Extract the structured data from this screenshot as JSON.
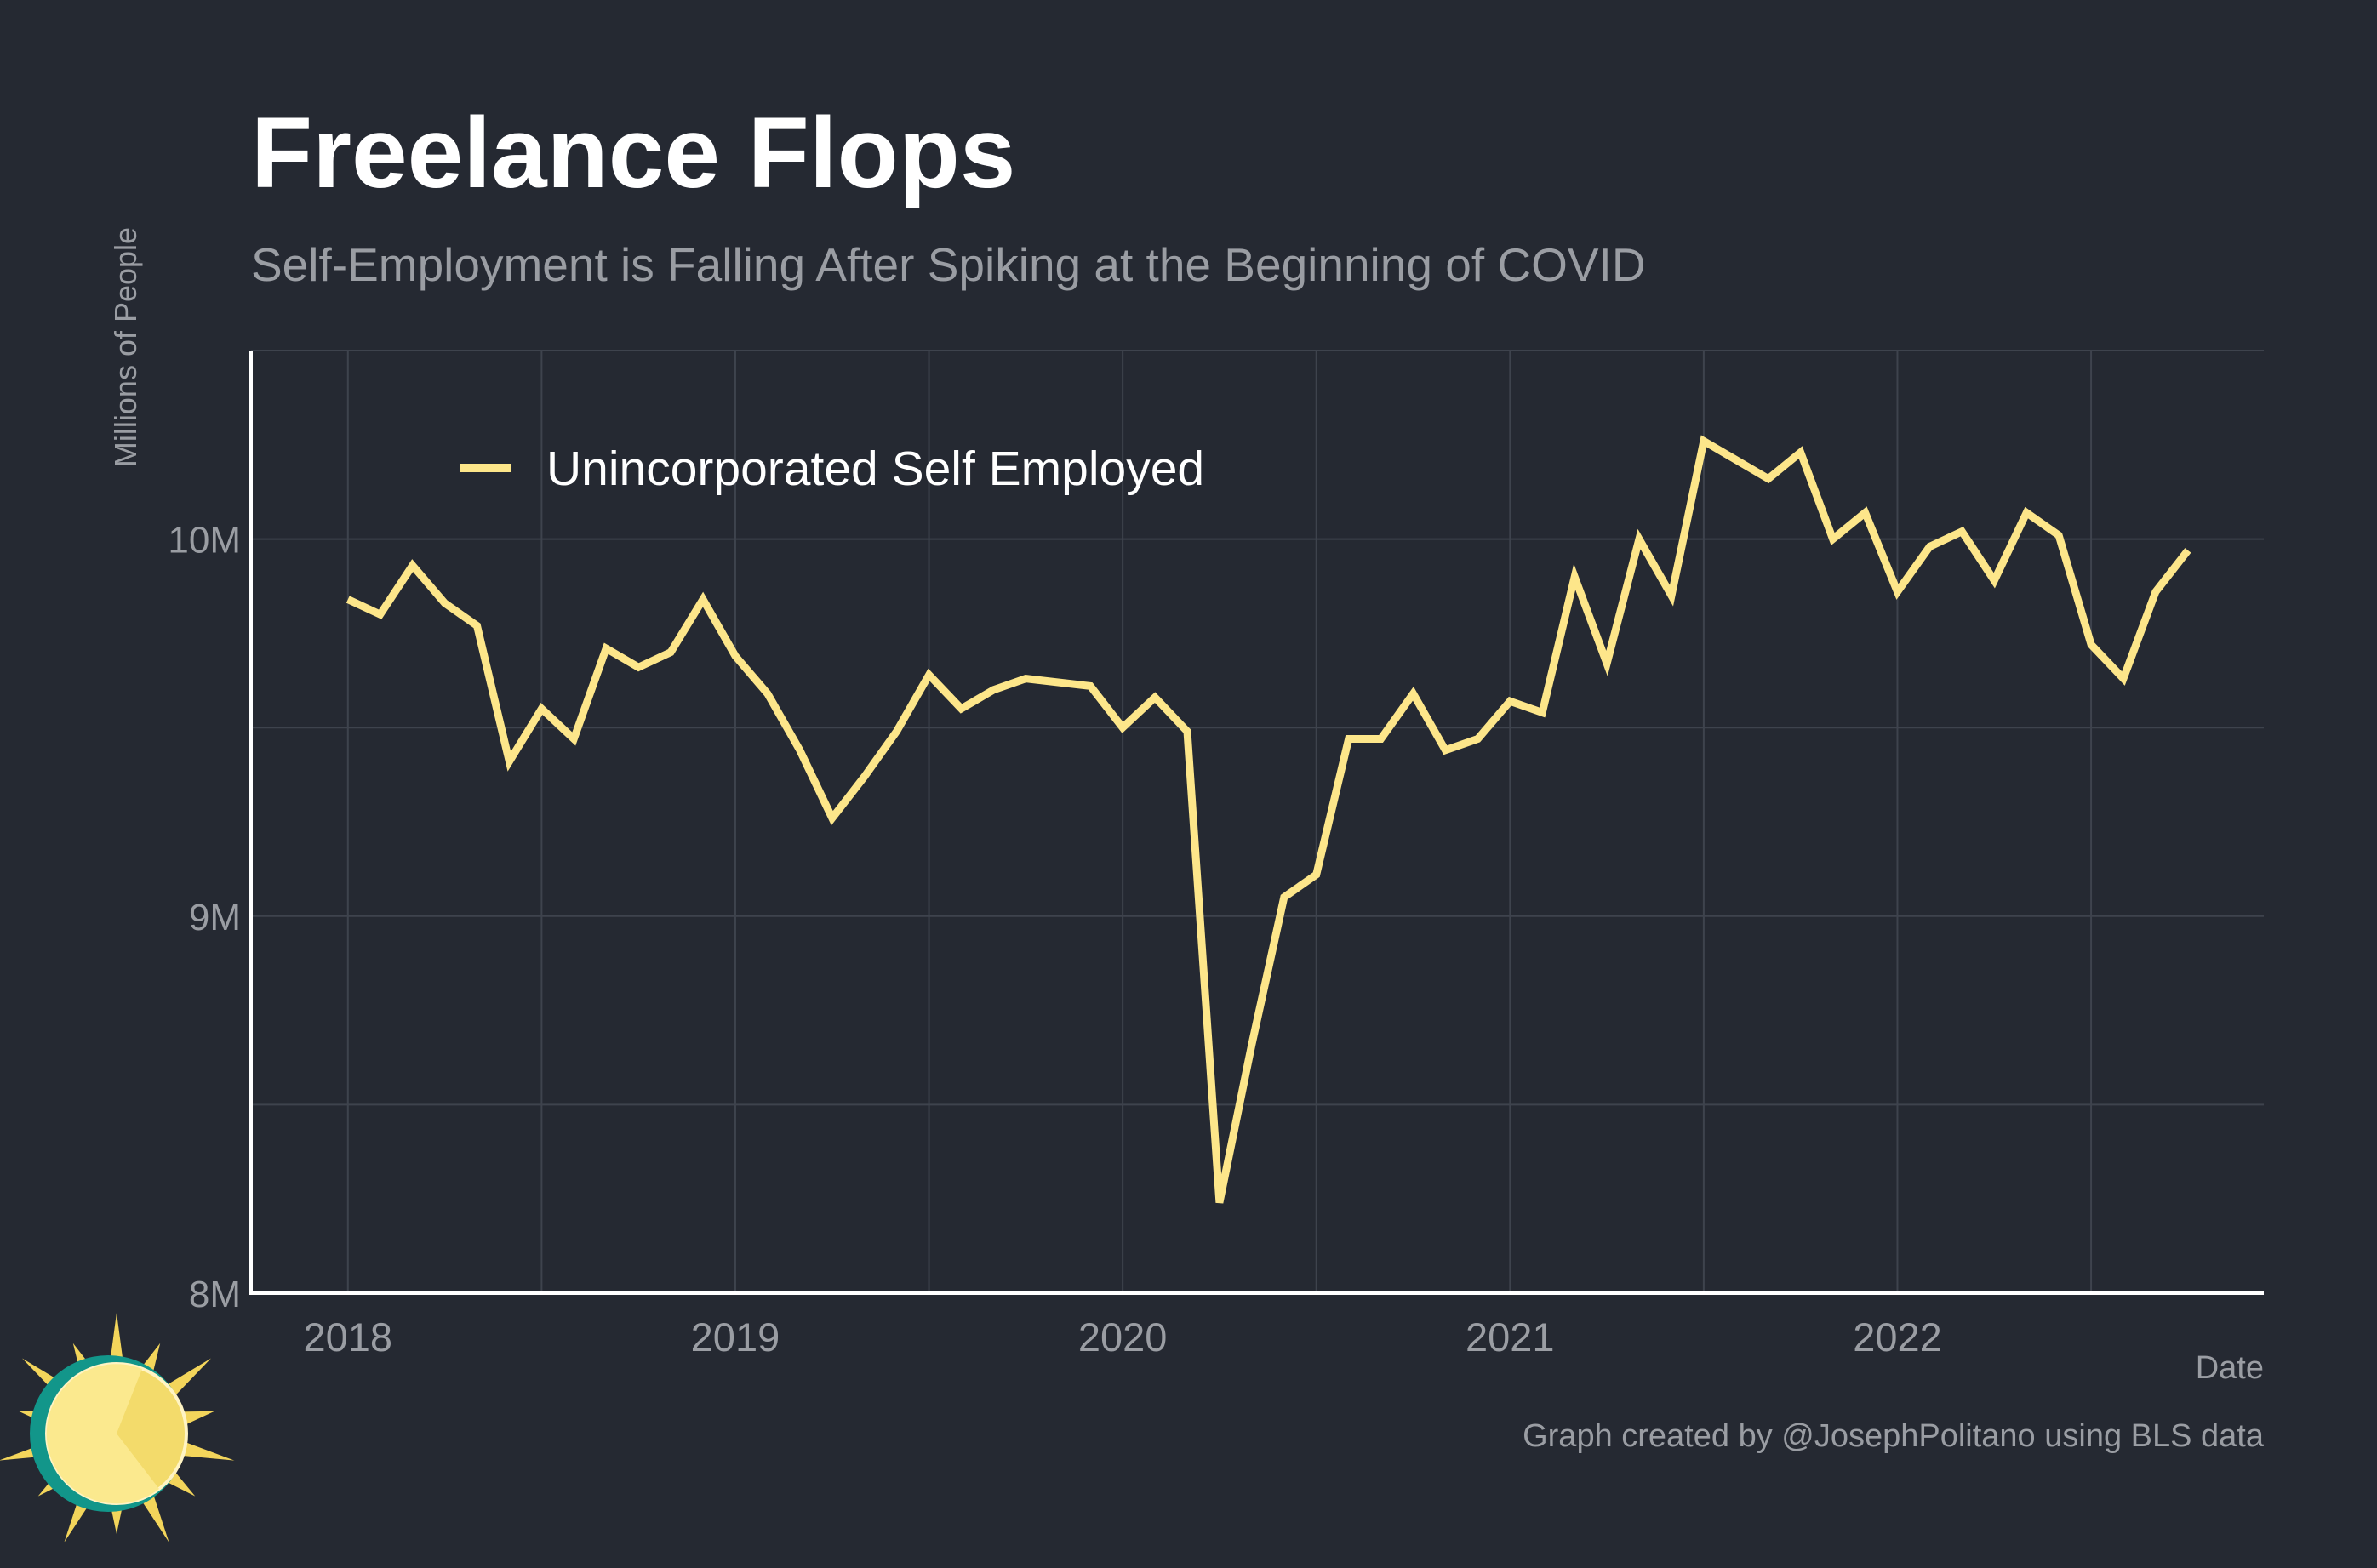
{
  "chart_data": {
    "type": "line",
    "title": "Freelance Flops",
    "subtitle": "Self-Employment is Falling After Spiking at the Beginning of COVID",
    "ylabel": "Millions of People",
    "xlabel": "Date",
    "caption": "Graph created by @JosephPolitano using BLS data",
    "x_ticks": [
      "2018",
      "2019",
      "2020",
      "2021",
      "2022"
    ],
    "y_ticks": [
      "8M",
      "9M",
      "10M"
    ],
    "y_tick_values": [
      8,
      9,
      10
    ],
    "ylim": [
      8,
      10.5
    ],
    "xlim": [
      "2017-10",
      "2022-12"
    ],
    "grid": true,
    "legend": "top-left",
    "colors": {
      "background": "#252932",
      "line": "#FDE68A",
      "grid": "#3E434D",
      "text": "#9A9DA3",
      "title": "#FFFFFF",
      "axis": "#FFFFFF"
    },
    "series": [
      {
        "name": "Unincorporated Self Employed",
        "x": [
          "2018-01",
          "2018-02",
          "2018-03",
          "2018-04",
          "2018-05",
          "2018-06",
          "2018-07",
          "2018-08",
          "2018-09",
          "2018-10",
          "2018-11",
          "2018-12",
          "2019-01",
          "2019-02",
          "2019-03",
          "2019-04",
          "2019-05",
          "2019-06",
          "2019-07",
          "2019-08",
          "2019-09",
          "2019-10",
          "2019-11",
          "2019-12",
          "2020-01",
          "2020-02",
          "2020-03",
          "2020-04",
          "2020-05",
          "2020-06",
          "2020-07",
          "2020-08",
          "2020-09",
          "2020-10",
          "2020-11",
          "2020-12",
          "2021-01",
          "2021-02",
          "2021-03",
          "2021-04",
          "2021-05",
          "2021-06",
          "2021-07",
          "2021-08",
          "2021-09",
          "2021-10",
          "2021-11",
          "2021-12",
          "2022-01",
          "2022-02",
          "2022-03",
          "2022-04",
          "2022-05",
          "2022-06",
          "2022-07",
          "2022-08",
          "2022-09",
          "2022-10"
        ],
        "values": [
          9.84,
          9.8,
          9.93,
          9.83,
          9.77,
          9.41,
          9.55,
          9.47,
          9.71,
          9.66,
          9.7,
          9.84,
          9.69,
          9.59,
          9.44,
          9.26,
          9.37,
          9.49,
          9.64,
          9.55,
          9.6,
          9.63,
          9.62,
          9.61,
          9.5,
          9.58,
          9.49,
          8.24,
          8.66,
          9.05,
          9.11,
          9.47,
          9.47,
          9.59,
          9.44,
          9.47,
          9.57,
          9.54,
          9.9,
          9.67,
          10.0,
          9.85,
          10.26,
          10.21,
          10.16,
          10.23,
          10.0,
          10.07,
          9.86,
          9.98,
          10.02,
          9.89,
          10.07,
          10.01,
          9.72,
          9.63,
          9.86,
          9.97
        ]
      }
    ]
  }
}
